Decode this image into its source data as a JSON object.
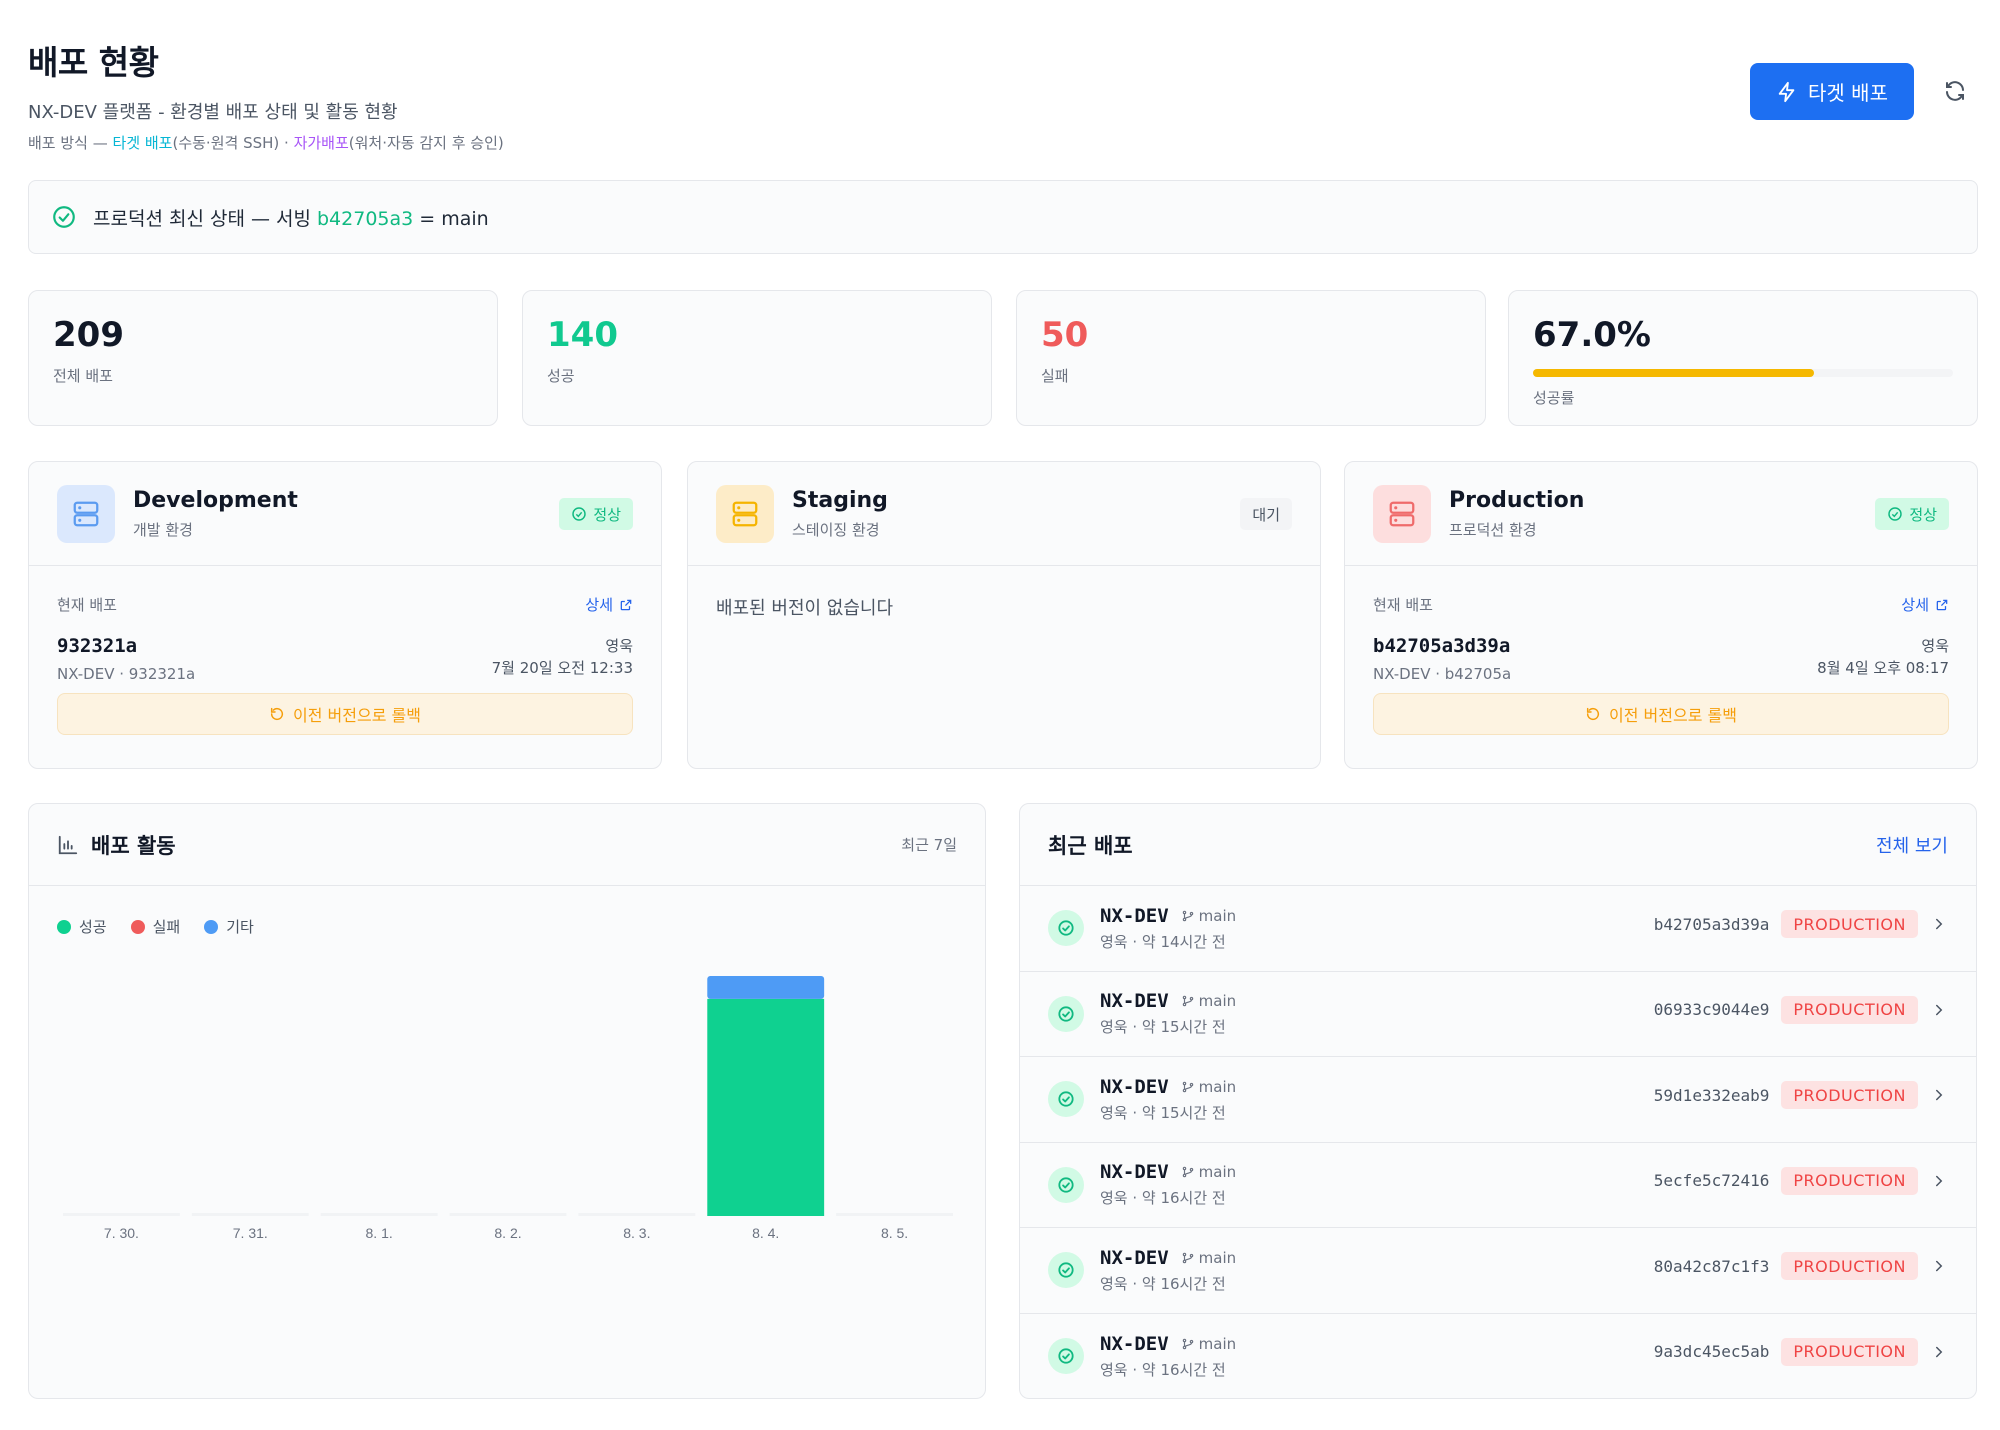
{
  "header": {
    "title": "배포 현황",
    "subtitle": "NX-DEV 플랫폼 - 환경별 배포 상태 및 활동 현황",
    "note_prefix": "배포 방식 — ",
    "note_target": "타겟 배포",
    "note_target_desc": "(수동·원격 SSH) · ",
    "note_self": "자가배포",
    "note_self_desc": "(워처·자동 감지 후 승인)",
    "deploy_button": "타겟 배포",
    "icons": {
      "deploy": "lightning-icon",
      "refresh": "refresh-icon"
    }
  },
  "status_banner": {
    "prefix": "프로덕션 최신 상태 — 서빙 ",
    "commit": "b42705a3",
    "suffix": " = main",
    "icon": "check-circle-icon"
  },
  "stats": [
    {
      "value": "209",
      "label": "전체 배포",
      "color": "#111827"
    },
    {
      "value": "140",
      "label": "성공",
      "color": "#10c98f"
    },
    {
      "value": "50",
      "label": "실패",
      "color": "#ef5b5b"
    },
    {
      "value": "67.0%",
      "label": "성공률",
      "color": "#111827",
      "progress": 0.67,
      "progress_color": "#f5b800"
    }
  ],
  "environments": {
    "development": {
      "name": "Development",
      "sub": "개발 환경",
      "badge": "정상",
      "current_label": "현재 배포",
      "detail": "상세",
      "commit": "932321a",
      "repo": "NX-DEV · 932321a",
      "author": "영욱",
      "time": "7월 20일 오전 12:33",
      "rollback": "이전 버전으로 롤백",
      "accent": "#5b9bf0",
      "icon_bg": "#dbe8fd"
    },
    "staging": {
      "name": "Staging",
      "sub": "스테이징 환경",
      "badge": "대기",
      "empty": "배포된 버전이 없습니다",
      "accent": "#f5b400",
      "icon_bg": "#fdecc8"
    },
    "production": {
      "name": "Production",
      "sub": "프로덕션 환경",
      "badge": "정상",
      "current_label": "현재 배포",
      "detail": "상세",
      "commit": "b42705a3d39a",
      "repo": "NX-DEV · b42705a",
      "author": "영욱",
      "time": "8월 4일 오후 08:17",
      "rollback": "이전 버전으로 롤백",
      "accent": "#ef6b6b",
      "icon_bg": "#fddede"
    }
  },
  "activity": {
    "title": "배포 활동",
    "range": "최근 7일",
    "legend": [
      "성공",
      "실패",
      "기타"
    ],
    "icon": "bar-chart-icon"
  },
  "chart_data": {
    "type": "bar",
    "categories": [
      "7. 30.",
      "7. 31.",
      "8. 1.",
      "8. 2.",
      "8. 3.",
      "8. 4.",
      "8. 5."
    ],
    "series": [
      {
        "name": "성공",
        "values": [
          0,
          0,
          0,
          0,
          0,
          38,
          0
        ],
        "color": "#0fd190"
      },
      {
        "name": "실패",
        "values": [
          0,
          0,
          0,
          0,
          0,
          0,
          0
        ],
        "color": "#ef5b5b"
      },
      {
        "name": "기타",
        "values": [
          0,
          0,
          0,
          0,
          0,
          4,
          0
        ],
        "color": "#4e9bf5"
      }
    ],
    "stacked": true,
    "ylim": [
      0,
      42
    ],
    "grid": false,
    "legend": "top-left"
  },
  "recent": {
    "title": "최근 배포",
    "view_all": "전체 보기",
    "rows": [
      {
        "project": "NX-DEV",
        "branch": "main",
        "meta": "영욱 · 약 14시간 전",
        "hash": "b42705a3d39a",
        "env": "PRODUCTION"
      },
      {
        "project": "NX-DEV",
        "branch": "main",
        "meta": "영욱 · 약 15시간 전",
        "hash": "06933c9044e9",
        "env": "PRODUCTION"
      },
      {
        "project": "NX-DEV",
        "branch": "main",
        "meta": "영욱 · 약 15시간 전",
        "hash": "59d1e332eab9",
        "env": "PRODUCTION"
      },
      {
        "project": "NX-DEV",
        "branch": "main",
        "meta": "영욱 · 약 16시간 전",
        "hash": "5ecfe5c72416",
        "env": "PRODUCTION"
      },
      {
        "project": "NX-DEV",
        "branch": "main",
        "meta": "영욱 · 약 16시간 전",
        "hash": "80a42c87c1f3",
        "env": "PRODUCTION"
      },
      {
        "project": "NX-DEV",
        "branch": "main",
        "meta": "영욱 · 약 16시간 전",
        "hash": "9a3dc45ec5ab",
        "env": "PRODUCTION"
      }
    ]
  }
}
